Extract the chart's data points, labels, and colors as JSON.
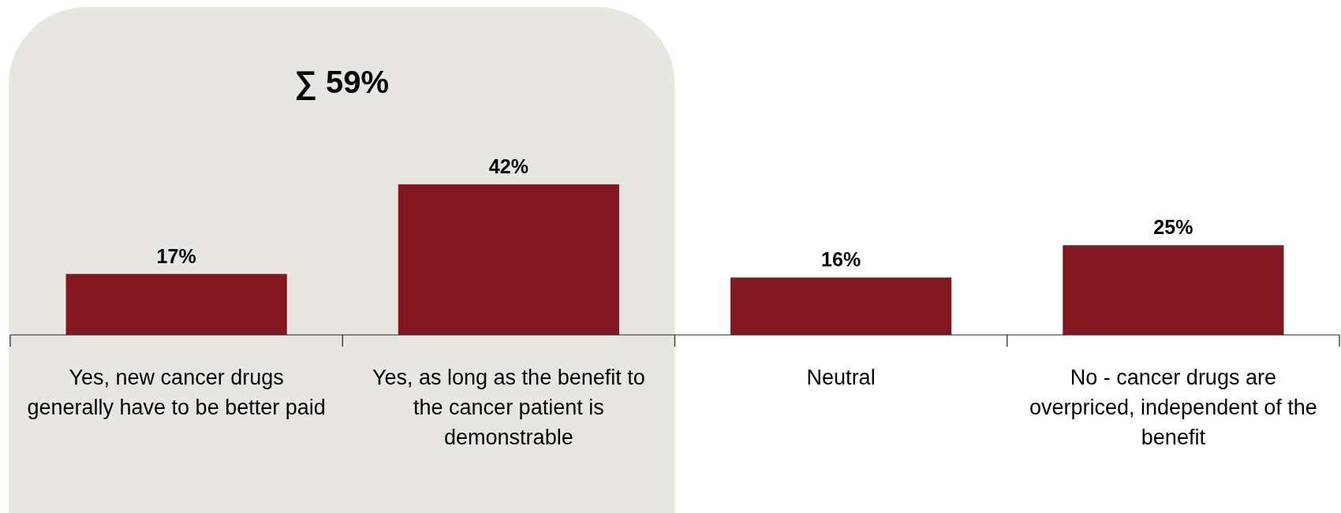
{
  "chart_data": {
    "type": "bar",
    "categories": [
      "Yes, new cancer drugs generally have to be better paid",
      "Yes, as long as the benefit to the cancer patient is demonstrable",
      "Neutral",
      "No - cancer drugs are overpriced, independent of the benefit"
    ],
    "values": [
      17,
      42,
      16,
      25
    ],
    "value_labels": [
      "17%",
      "42%",
      "16%",
      "25%"
    ],
    "color": "#821720",
    "bands": [
      {
        "axis": "x",
        "from": "Yes, new cancer drugs generally have to be better paid",
        "to": "Yes, as long as the benefit to the cancer patient is demonstrable",
        "label": "∑ 59%",
        "color": "#e8e6e1"
      }
    ]
  }
}
